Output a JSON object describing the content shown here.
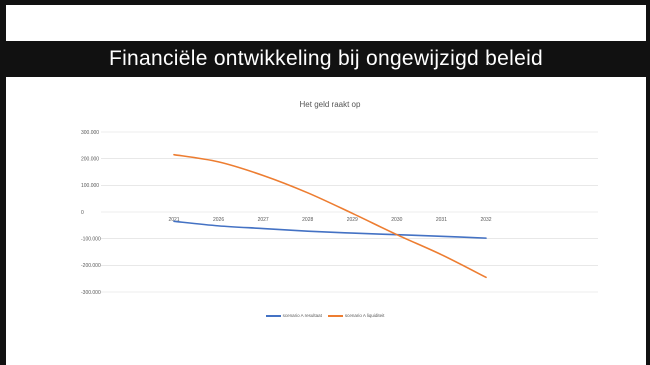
{
  "slide": {
    "title": "Financiële ontwikkeling bij ongewijzigd beleid"
  },
  "chart_data": {
    "type": "line",
    "title": "Het geld raakt op",
    "categories": [
      "2021",
      "2026",
      "2027",
      "2028",
      "2029",
      "2030",
      "2031",
      "2032"
    ],
    "y_ticks": [
      "300.000",
      "200.000",
      "100.000",
      "0",
      "-100.000",
      "-200.000",
      "-300.000"
    ],
    "ylim": [
      -300000,
      300000
    ],
    "grid": true,
    "legend_position": "bottom",
    "series": [
      {
        "name": "scenario A resultaat",
        "color": "#4472C4",
        "values": [
          -35000,
          -52000,
          -62000,
          -72000,
          -79000,
          -85000,
          -91000,
          -98000
        ]
      },
      {
        "name": "scenario A liquiditeit",
        "color": "#ED7D31",
        "values": [
          215000,
          188000,
          137000,
          72000,
          -5000,
          -85000,
          -160000,
          -245000
        ]
      }
    ]
  }
}
